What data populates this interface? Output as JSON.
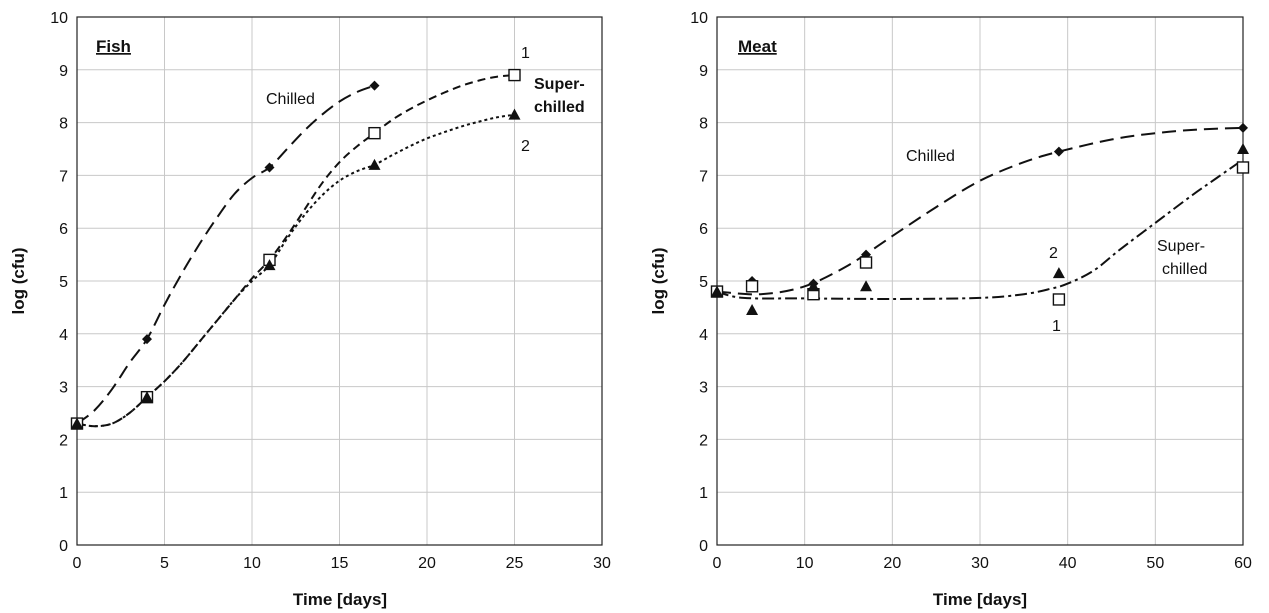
{
  "chart_data": [
    {
      "type": "line",
      "panel": "Fish",
      "title": "Fish",
      "xlabel": "Time  [days]",
      "ylabel": "log (cfu)",
      "xlim": [
        0,
        30
      ],
      "ylim": [
        0,
        10
      ],
      "x_ticks": [
        "0",
        "5",
        "10",
        "15",
        "20",
        "25",
        "30"
      ],
      "y_ticks": [
        "0",
        "1",
        "2",
        "3",
        "4",
        "5",
        "6",
        "7",
        "8",
        "9",
        "10"
      ],
      "grid": true,
      "annotations": {
        "chilled": "Chilled",
        "super_line1": "Super-",
        "super_line2": "chilled",
        "label_1": "1",
        "label_2": "2"
      },
      "series": [
        {
          "marker": "diamond",
          "line": "long-dash",
          "color": "#111111",
          "x": [
            0,
            4,
            11,
            17
          ],
          "y": [
            2.3,
            3.9,
            7.15,
            8.7
          ],
          "curve_x": [
            0,
            1,
            2,
            3,
            4,
            5,
            6,
            7,
            8,
            9,
            10,
            11,
            12,
            13,
            14,
            15,
            16,
            17
          ],
          "curve_y": [
            2.3,
            2.55,
            2.95,
            3.45,
            3.9,
            4.55,
            5.15,
            5.7,
            6.2,
            6.65,
            6.95,
            7.15,
            7.5,
            7.85,
            8.15,
            8.4,
            8.58,
            8.7
          ]
        },
        {
          "marker": "square-open",
          "line": "short-dash",
          "color": "#111111",
          "x": [
            0,
            4,
            11,
            17,
            25
          ],
          "y": [
            2.3,
            2.8,
            5.4,
            7.8,
            8.9
          ],
          "curve_x": [
            0,
            1,
            2,
            3,
            4,
            5,
            6,
            7,
            8,
            9,
            10,
            11,
            12,
            13,
            14,
            15,
            16,
            17,
            18,
            19,
            20,
            21,
            22,
            23,
            24,
            25
          ],
          "curve_y": [
            2.3,
            2.25,
            2.3,
            2.5,
            2.8,
            3.1,
            3.45,
            3.85,
            4.25,
            4.65,
            5.05,
            5.4,
            5.85,
            6.35,
            6.85,
            7.25,
            7.55,
            7.8,
            8.05,
            8.25,
            8.42,
            8.57,
            8.7,
            8.8,
            8.87,
            8.9
          ]
        },
        {
          "marker": "triangle",
          "line": "dotted",
          "color": "#111111",
          "x": [
            0,
            4,
            11,
            17,
            25
          ],
          "y": [
            2.3,
            2.8,
            5.3,
            7.2,
            8.15
          ],
          "curve_x": [
            0,
            1,
            2,
            3,
            4,
            5,
            6,
            7,
            8,
            9,
            10,
            11,
            12,
            13,
            14,
            15,
            16,
            17,
            18,
            19,
            20,
            21,
            22,
            23,
            24,
            25
          ],
          "curve_y": [
            2.3,
            2.25,
            2.3,
            2.5,
            2.8,
            3.1,
            3.45,
            3.85,
            4.25,
            4.65,
            5.0,
            5.3,
            5.8,
            6.25,
            6.62,
            6.9,
            7.08,
            7.2,
            7.38,
            7.55,
            7.7,
            7.82,
            7.93,
            8.02,
            8.1,
            8.15
          ]
        }
      ]
    },
    {
      "type": "line",
      "panel": "Meat",
      "title": "Meat",
      "xlabel": "Time  [days]",
      "ylabel": "log (cfu)",
      "xlim": [
        0,
        60
      ],
      "ylim": [
        0,
        10
      ],
      "x_ticks": [
        "0",
        "10",
        "20",
        "30",
        "40",
        "50",
        "60"
      ],
      "y_ticks": [
        "0",
        "1",
        "2",
        "3",
        "4",
        "5",
        "6",
        "7",
        "8",
        "9",
        "10"
      ],
      "grid": true,
      "annotations": {
        "chilled": "Chilled",
        "super_line1": "Super-",
        "super_line2": "chilled",
        "label_1": "1",
        "label_2": "2"
      },
      "series": [
        {
          "marker": "diamond",
          "line": "long-dash",
          "color": "#111111",
          "x": [
            0,
            4,
            11,
            17,
            39,
            60
          ],
          "y": [
            4.8,
            5.0,
            4.95,
            5.5,
            7.45,
            7.9
          ],
          "curve_x": [
            0,
            5,
            10,
            15,
            20,
            25,
            30,
            35,
            39,
            45,
            50,
            55,
            60
          ],
          "curve_y": [
            4.8,
            4.75,
            4.9,
            5.3,
            5.85,
            6.4,
            6.9,
            7.25,
            7.45,
            7.68,
            7.8,
            7.87,
            7.9
          ]
        },
        {
          "marker": "square-open",
          "line": "dash-dot",
          "color": "#111111",
          "x": [
            0,
            4,
            11,
            17,
            39,
            60
          ],
          "y": [
            4.8,
            4.9,
            4.75,
            5.35,
            4.65,
            7.15
          ],
          "curve_x": [
            0,
            3,
            10,
            20,
            30,
            35,
            38,
            40,
            43,
            46,
            50,
            54,
            57,
            60
          ],
          "curve_y": [
            4.8,
            4.68,
            4.67,
            4.66,
            4.68,
            4.75,
            4.85,
            4.95,
            5.2,
            5.6,
            6.1,
            6.6,
            6.95,
            7.3
          ]
        },
        {
          "marker": "triangle",
          "line": "none",
          "color": "#111111",
          "x": [
            0,
            4,
            11,
            17,
            39,
            60
          ],
          "y": [
            4.8,
            4.45,
            4.9,
            4.9,
            5.15,
            7.5
          ]
        }
      ]
    }
  ]
}
